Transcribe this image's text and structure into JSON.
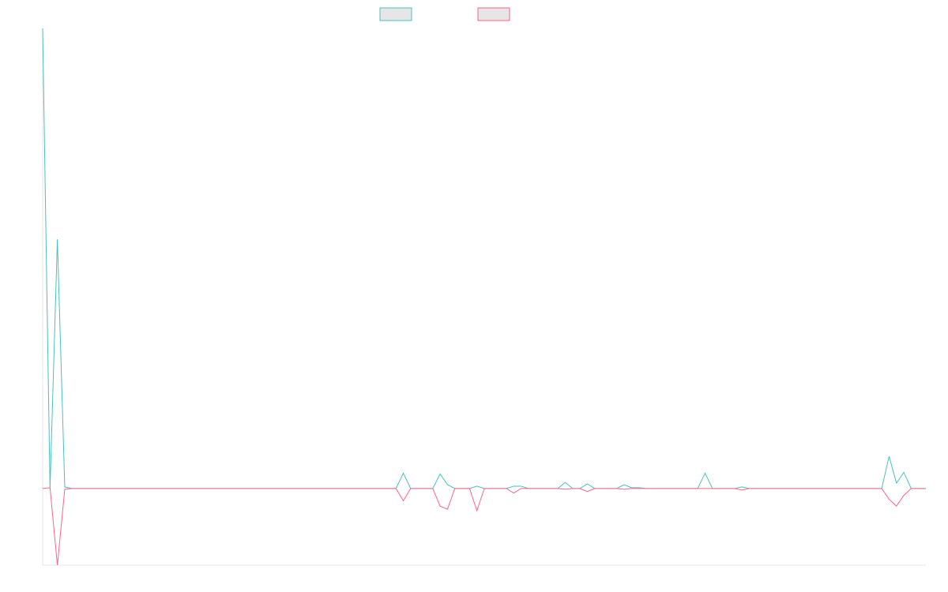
{
  "chart_data": {
    "type": "line",
    "title": "",
    "xlabel": "",
    "ylabel": "",
    "grid": false,
    "legend_position": "top-center",
    "ylim": [
      -100,
      600
    ],
    "x": [
      0,
      1,
      2,
      3,
      4,
      5,
      6,
      7,
      8,
      9,
      10,
      11,
      12,
      13,
      14,
      15,
      16,
      17,
      18,
      19,
      20,
      21,
      22,
      23,
      24,
      25,
      26,
      27,
      28,
      29,
      30,
      31,
      32,
      33,
      34,
      35,
      36,
      37,
      38,
      39,
      40,
      41,
      42,
      43,
      44,
      45,
      46,
      47,
      48,
      49,
      50,
      51,
      52,
      53,
      54,
      55,
      56,
      57,
      58,
      59,
      60,
      61,
      62,
      63,
      64,
      65,
      66,
      67,
      68,
      69,
      70,
      71,
      72,
      73,
      74,
      75,
      76,
      77,
      78,
      79,
      80,
      81,
      82,
      83,
      84,
      85,
      86,
      87,
      88,
      89,
      90,
      91,
      92,
      93,
      94,
      95,
      96,
      97,
      98,
      99,
      100,
      101,
      102,
      103,
      104,
      105,
      106,
      107,
      108,
      109,
      110,
      111,
      112,
      113,
      114,
      115,
      116,
      117,
      118,
      119,
      120
    ],
    "series": [
      {
        "name": "",
        "color": "#4bc0c0",
        "values": [
          600,
          0,
          325,
          2,
          0,
          0,
          0,
          0,
          0,
          0,
          0,
          0,
          0,
          0,
          0,
          0,
          0,
          0,
          0,
          0,
          0,
          0,
          0,
          0,
          0,
          0,
          0,
          0,
          0,
          0,
          0,
          0,
          0,
          0,
          0,
          0,
          0,
          0,
          0,
          0,
          0,
          0,
          0,
          0,
          0,
          0,
          0,
          0,
          0,
          20,
          0,
          0,
          0,
          0,
          19,
          5,
          0,
          0,
          0,
          3,
          0,
          0,
          0,
          0,
          3,
          3,
          0,
          0,
          0,
          0,
          0,
          8,
          0,
          0,
          6,
          0,
          0,
          0,
          0,
          5,
          1,
          1,
          0,
          0,
          0,
          0,
          0,
          0,
          0,
          0,
          20,
          0,
          0,
          0,
          0,
          2,
          0,
          0,
          0,
          0,
          0,
          0,
          0,
          0,
          0,
          0,
          0,
          0,
          0,
          0,
          0,
          0,
          0,
          0,
          0,
          42,
          7,
          21,
          0,
          0,
          0
        ]
      },
      {
        "name": "",
        "color": "#ff6384",
        "values": [
          0,
          1,
          -100,
          -1,
          0,
          0,
          0,
          0,
          0,
          0,
          0,
          0,
          0,
          0,
          0,
          0,
          0,
          0,
          0,
          0,
          0,
          0,
          0,
          0,
          0,
          0,
          0,
          0,
          0,
          0,
          0,
          0,
          0,
          0,
          0,
          0,
          0,
          0,
          0,
          0,
          0,
          0,
          0,
          0,
          0,
          0,
          0,
          0,
          0,
          -16,
          0,
          0,
          0,
          0,
          -23,
          -27,
          0,
          0,
          0,
          -29,
          0,
          0,
          0,
          0,
          -6,
          0,
          0,
          0,
          0,
          0,
          0,
          -1,
          0,
          0,
          -4,
          0,
          0,
          0,
          0,
          -1,
          0,
          0,
          0,
          0,
          0,
          0,
          0,
          0,
          0,
          0,
          0,
          0,
          0,
          0,
          0,
          -2,
          0,
          0,
          0,
          0,
          0,
          0,
          0,
          0,
          0,
          0,
          0,
          0,
          0,
          0,
          0,
          0,
          0,
          0,
          0,
          -14,
          -23,
          -9,
          0,
          0,
          0
        ]
      }
    ]
  }
}
